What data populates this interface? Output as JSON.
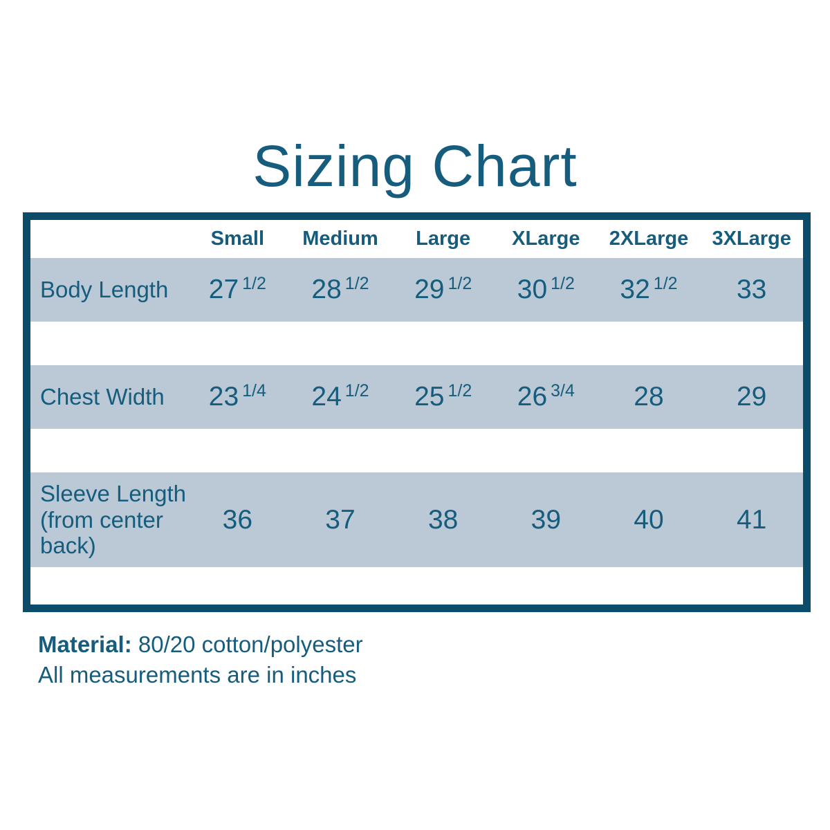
{
  "page": {
    "title": "Sizing Chart"
  },
  "colors": {
    "text_teal": "#165c7d",
    "table_border": "#0c4c6b",
    "row_background": "#bac9d5"
  },
  "table": {
    "columns": [
      "Small",
      "Medium",
      "Large",
      "XLarge",
      "2XLarge",
      "3XLarge"
    ],
    "rows": [
      {
        "label": "Body Length",
        "values": [
          {
            "n": "27",
            "f": "1/2"
          },
          {
            "n": "28",
            "f": "1/2"
          },
          {
            "n": "29",
            "f": "1/2"
          },
          {
            "n": "30",
            "f": "1/2"
          },
          {
            "n": "32",
            "f": "1/2"
          },
          {
            "n": "33",
            "f": ""
          }
        ]
      },
      {
        "label": "Chest Width",
        "values": [
          {
            "n": "23",
            "f": "1/4"
          },
          {
            "n": "24",
            "f": "1/2"
          },
          {
            "n": "25",
            "f": "1/2"
          },
          {
            "n": "26",
            "f": "3/4"
          },
          {
            "n": "28",
            "f": ""
          },
          {
            "n": "29",
            "f": ""
          }
        ]
      },
      {
        "label": "Sleeve Length (from center back)",
        "values": [
          {
            "n": "36",
            "f": ""
          },
          {
            "n": "37",
            "f": ""
          },
          {
            "n": "38",
            "f": ""
          },
          {
            "n": "39",
            "f": ""
          },
          {
            "n": "40",
            "f": ""
          },
          {
            "n": "41",
            "f": ""
          }
        ]
      }
    ]
  },
  "footer": {
    "material_label": "Material:",
    "material_value": "80/20 cotton/polyester",
    "note": "All measurements are in inches"
  }
}
